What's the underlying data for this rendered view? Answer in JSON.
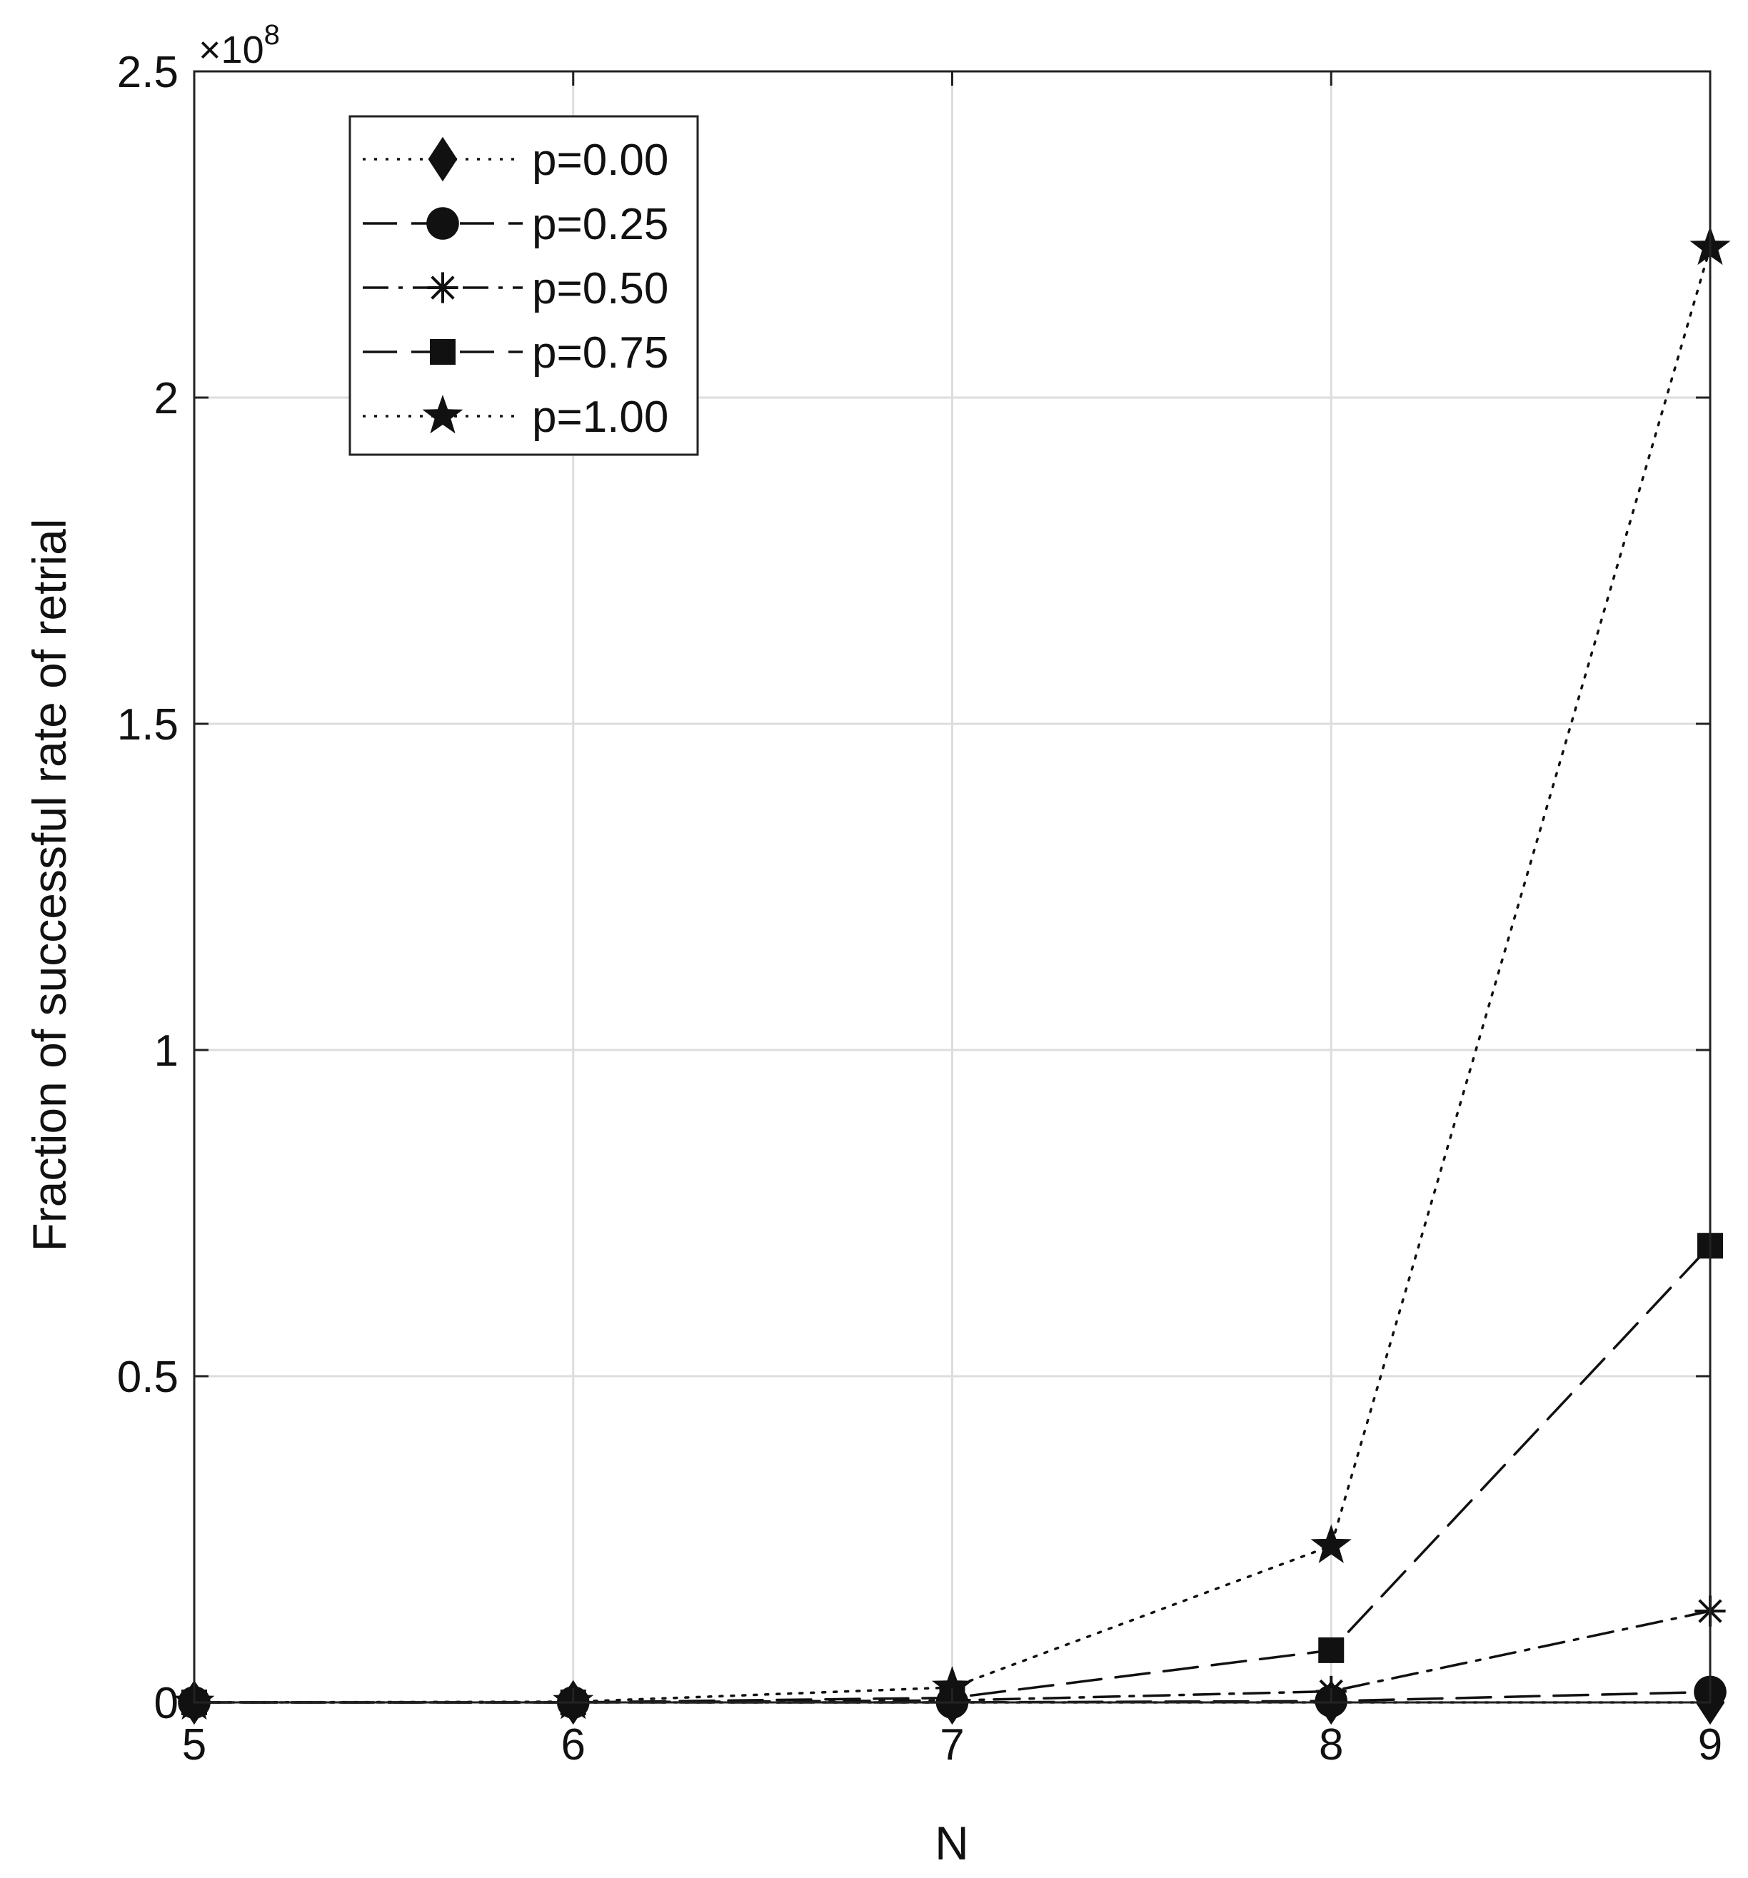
{
  "chart_data": {
    "type": "line",
    "title": "",
    "xlabel": "N",
    "ylabel": "Fraction of successful rate of retrial",
    "y_exponent_label": "×10",
    "y_exponent_power": "8",
    "xlim": [
      5,
      9
    ],
    "ylim": [
      0,
      2.5
    ],
    "grid": true,
    "legend_position": "top-left",
    "x": [
      5,
      6,
      7,
      8,
      9
    ],
    "x_tick_labels": [
      "5",
      "6",
      "7",
      "8",
      "9"
    ],
    "y_ticks": [
      0,
      0.5,
      1,
      1.5,
      2,
      2.5
    ],
    "y_tick_labels": [
      "0",
      "0.5",
      "1",
      "1.5",
      "2",
      "2.5"
    ],
    "series": [
      {
        "name": "p=0.00",
        "marker": "diamond",
        "line_style": "dotted",
        "values": [
          0.0,
          0.0,
          0.0,
          0.0,
          0.0
        ]
      },
      {
        "name": "p=0.25",
        "marker": "circle",
        "line_style": "dashed",
        "values": [
          0.0,
          0.0,
          0.0,
          0.002,
          0.016
        ]
      },
      {
        "name": "p=0.50",
        "marker": "asterisk",
        "line_style": "dashdot",
        "values": [
          0.0,
          0.0,
          0.003,
          0.017,
          0.14
        ]
      },
      {
        "name": "p=0.75",
        "marker": "square",
        "line_style": "dashed",
        "values": [
          0.0,
          0.0,
          0.007,
          0.08,
          0.7
        ]
      },
      {
        "name": "p=1.00",
        "marker": "star",
        "line_style": "dotted",
        "values": [
          0.0,
          0.001,
          0.023,
          0.24,
          2.23
        ]
      }
    ],
    "colors": {
      "line": "#111111",
      "grid": "#dddddd",
      "axis": "#222222"
    }
  }
}
